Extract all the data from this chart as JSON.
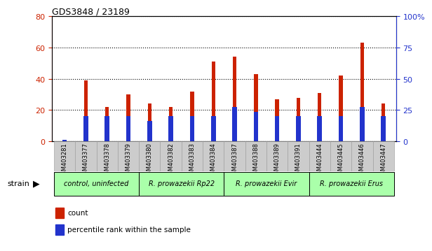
{
  "title": "GDS3848 / 23189",
  "samples": [
    "GSM403281",
    "GSM403377",
    "GSM403378",
    "GSM403379",
    "GSM403380",
    "GSM403382",
    "GSM403383",
    "GSM403384",
    "GSM403387",
    "GSM403388",
    "GSM403389",
    "GSM403391",
    "GSM403444",
    "GSM403445",
    "GSM403446",
    "GSM403447"
  ],
  "count_values": [
    1,
    39,
    22,
    30,
    24,
    22,
    32,
    51,
    54,
    43,
    27,
    28,
    31,
    42,
    63,
    24
  ],
  "percentile_values": [
    1,
    16,
    16,
    16,
    13,
    16,
    16,
    16,
    22,
    19,
    16,
    16,
    16,
    16,
    22,
    16
  ],
  "count_color": "#cc2200",
  "percentile_color": "#2233cc",
  "left_ylim": [
    0,
    80
  ],
  "right_ylim": [
    0,
    100
  ],
  "left_yticks": [
    0,
    20,
    40,
    60,
    80
  ],
  "right_yticks": [
    0,
    25,
    50,
    75,
    100
  ],
  "right_yticklabels": [
    "0",
    "25",
    "50",
    "75",
    "100%"
  ],
  "left_ycolor": "#cc2200",
  "right_ycolor": "#2233cc",
  "bar_width": 0.18,
  "blue_bar_width": 0.22,
  "tick_bg_color": "#cccccc",
  "plot_bg_color": "#ffffff",
  "fig_bg_color": "#ffffff",
  "strain_label": "strain",
  "grid_color": "#000000",
  "grid_linewidth": 0.8,
  "group_color": "#aaffaa",
  "group_boundaries": [
    [
      0,
      3,
      "control, uninfected"
    ],
    [
      4,
      7,
      "R. prowazekii Rp22"
    ],
    [
      8,
      11,
      "R. prowazekii Evir"
    ],
    [
      12,
      15,
      "R. prowazekii Erus"
    ]
  ]
}
